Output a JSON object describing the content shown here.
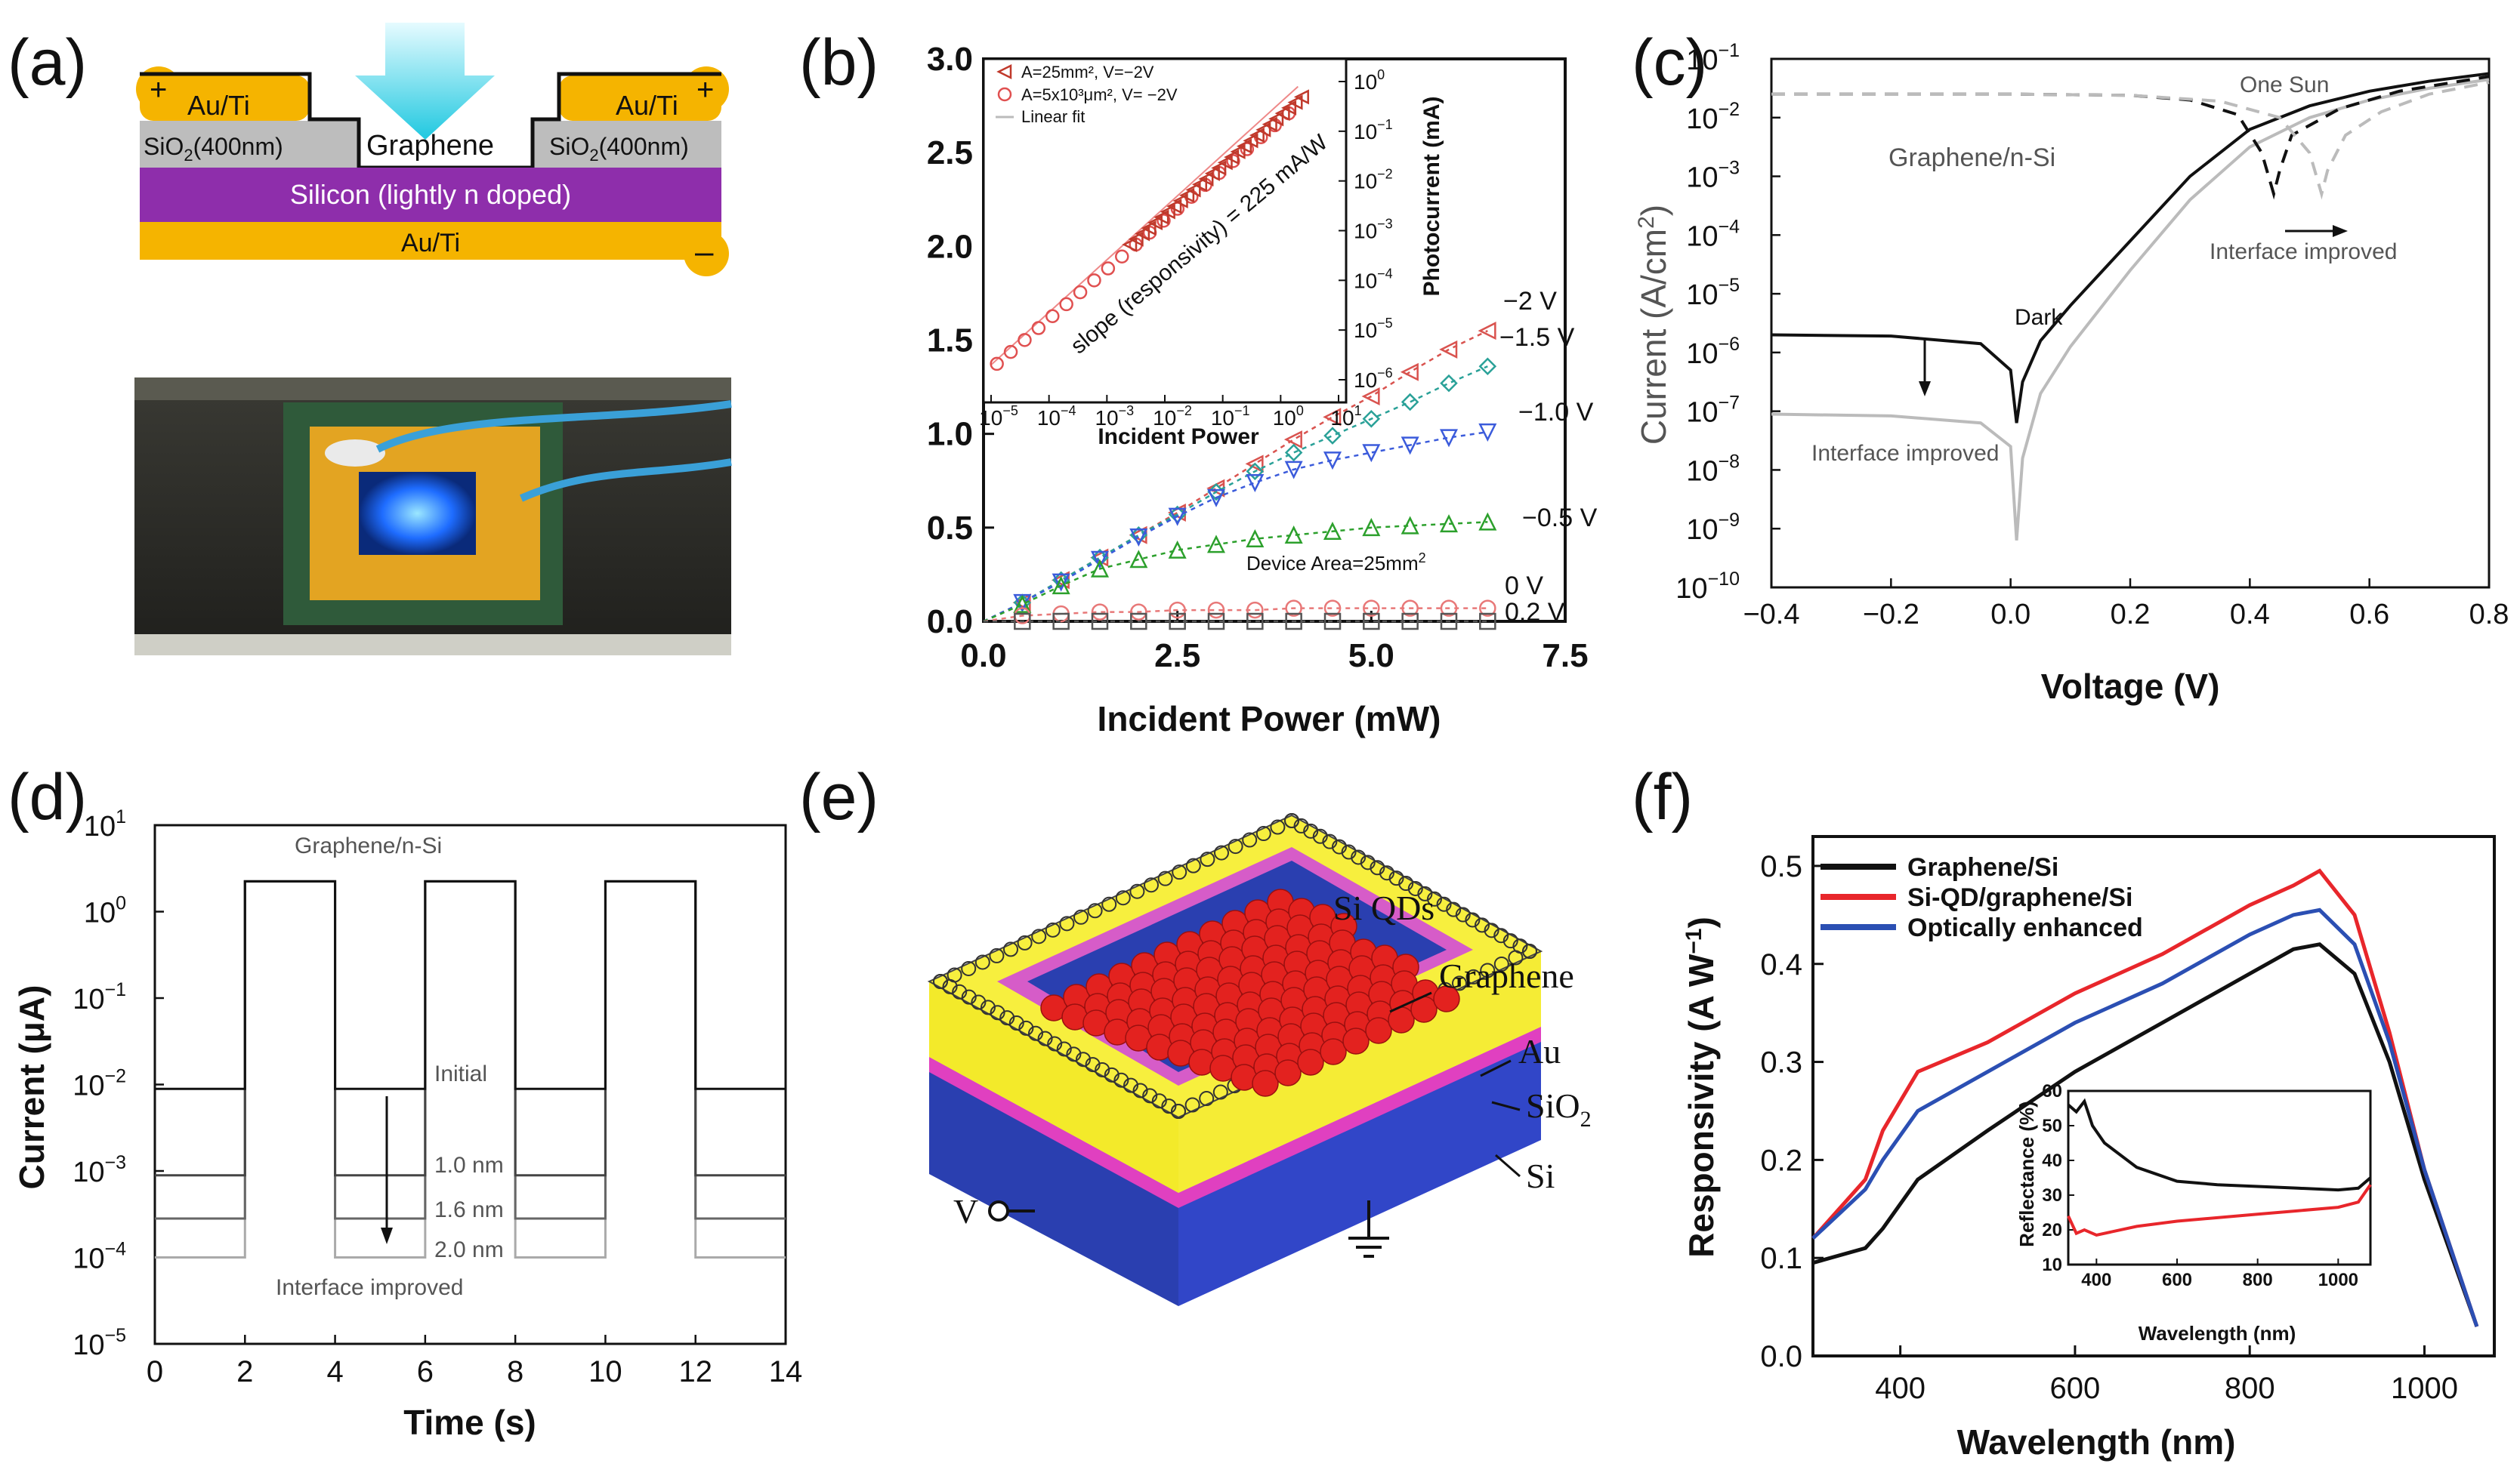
{
  "colors": {
    "gold": "#f5b400",
    "oxide": "#bdbdbd",
    "silicon": "#8e2eab",
    "arrow": "#33d6e8",
    "red": "#e8262b",
    "blue": "#2b4fb3",
    "black": "#111111",
    "gray": "#bbbbbb"
  },
  "labels": {
    "a": "(a)",
    "b": "(b)",
    "c": "(c)",
    "d": "(d)",
    "e": "(e)",
    "f": "(f)"
  },
  "panel_a": {
    "au_left": "Au/Ti",
    "au_right": "Au/Ti",
    "plus_left": "+",
    "plus_right": "+",
    "sio2_left": "SiO",
    "sio2_right": "SiO",
    "sio2_suffix": "(400nm)",
    "sub2": "2",
    "graphene": "Graphene",
    "silicon": "Silicon (lightly n doped)",
    "au_bottom": "Au/Ti",
    "minus": "–"
  },
  "panel_b": {
    "chart_data": {
      "type": "scatter",
      "xlabel": "Incident Power (mW)",
      "xlim": [
        0,
        7.5
      ],
      "ylim": [
        0,
        3.0
      ],
      "xticks": [
        "0.0",
        "2.5",
        "5.0",
        "7.5"
      ],
      "yticks": [
        "0.0",
        "0.5",
        "1.0",
        "1.5",
        "2.0",
        "2.5",
        "3.0"
      ],
      "series": [
        {
          "name": "−2 V",
          "color": "#d9534f",
          "marker": "triangle-left",
          "x": [
            0.5,
            1.0,
            1.5,
            2.0,
            2.5,
            3.0,
            3.5,
            4.0,
            4.5,
            5.0,
            5.5,
            6.0,
            6.5
          ],
          "y": [
            0.1,
            0.22,
            0.34,
            0.46,
            0.58,
            0.71,
            0.84,
            0.97,
            1.09,
            1.2,
            1.33,
            1.45,
            1.55
          ]
        },
        {
          "name": "−1.5 V",
          "color": "#2aa198",
          "marker": "diamond",
          "x": [
            0.5,
            1.0,
            1.5,
            2.0,
            2.5,
            3.0,
            3.5,
            4.0,
            4.5,
            5.0,
            5.5,
            6.0,
            6.5
          ],
          "y": [
            0.1,
            0.22,
            0.34,
            0.46,
            0.57,
            0.69,
            0.8,
            0.9,
            0.99,
            1.08,
            1.17,
            1.27,
            1.36
          ]
        },
        {
          "name": "−1.0 V",
          "color": "#3b5bdb",
          "marker": "triangle-down",
          "x": [
            0.5,
            1.0,
            1.5,
            2.0,
            2.5,
            3.0,
            3.5,
            4.0,
            4.5,
            5.0,
            5.5,
            6.0,
            6.5
          ],
          "y": [
            0.1,
            0.21,
            0.33,
            0.45,
            0.56,
            0.66,
            0.74,
            0.81,
            0.86,
            0.9,
            0.94,
            0.98,
            1.01
          ]
        },
        {
          "name": "−0.5 V",
          "color": "#2ca02c",
          "marker": "triangle-up",
          "x": [
            0.5,
            1.0,
            1.5,
            2.0,
            2.5,
            3.0,
            3.5,
            4.0,
            4.5,
            5.0,
            5.5,
            6.0,
            6.5
          ],
          "y": [
            0.09,
            0.19,
            0.28,
            0.33,
            0.38,
            0.41,
            0.44,
            0.46,
            0.48,
            0.5,
            0.51,
            0.52,
            0.53
          ]
        },
        {
          "name": "0 V",
          "color": "#e87878",
          "marker": "circle",
          "x": [
            0.5,
            1.0,
            1.5,
            2.0,
            2.5,
            3.0,
            3.5,
            4.0,
            4.5,
            5.0,
            5.5,
            6.0,
            6.5
          ],
          "y": [
            0.03,
            0.04,
            0.05,
            0.05,
            0.06,
            0.06,
            0.06,
            0.07,
            0.07,
            0.07,
            0.07,
            0.07,
            0.07
          ]
        },
        {
          "name": "0.2 V",
          "color": "#555555",
          "marker": "square",
          "x": [
            0.5,
            1.0,
            1.5,
            2.0,
            2.5,
            3.0,
            3.5,
            4.0,
            4.5,
            5.0,
            5.5,
            6.0,
            6.5
          ],
          "y": [
            0.0,
            0.0,
            0.0,
            0.0,
            0.0,
            0.0,
            0.0,
            0.0,
            0.0,
            0.0,
            0.0,
            0.0,
            0.0
          ]
        }
      ],
      "annotation": "Device Area=25mm",
      "annotation_sup": "2"
    },
    "inset": {
      "xlabel": "Incident Power",
      "ylabel": "Photocurrent (mA)",
      "xticks": [
        "10",
        "10",
        "10",
        "10",
        "10",
        "10",
        "10"
      ],
      "xexp": [
        "−5",
        "−4",
        "−3",
        "−2",
        "−1",
        "0",
        "1"
      ],
      "ybase": "10",
      "yexp": [
        "0",
        "−1",
        "−2",
        "−3",
        "−4",
        "−5",
        "−6"
      ],
      "legend": [
        "A=25mm², V=−2V",
        "A=5x10³μm², V= −2V",
        "Linear fit"
      ],
      "slope_text": "slope (responsivity) = 225 mA/W"
    }
  },
  "panel_c": {
    "chart_data": {
      "type": "line",
      "xlabel": "Voltage (V)",
      "ylabel": "Current (A/cm",
      "ylabel_sup": "2",
      "ylabel_end": ")",
      "xlim": [
        -0.4,
        0.8
      ],
      "ylog": [
        -10,
        -1
      ],
      "xticks": [
        "−0.4",
        "−0.2",
        "0.0",
        "0.2",
        "0.4",
        "0.6",
        "0.8"
      ],
      "ybase": "10",
      "yexp": [
        "−1",
        "−2",
        "−3",
        "−4",
        "−5",
        "−6",
        "−7",
        "−8",
        "−9",
        "−10"
      ],
      "series": [
        {
          "name": "Dark (original)",
          "color": "#111111",
          "x": [
            -0.4,
            -0.2,
            -0.05,
            0.0,
            0.01,
            0.02,
            0.05,
            0.1,
            0.2,
            0.3,
            0.4,
            0.5,
            0.6,
            0.7,
            0.8
          ],
          "log10_y": [
            -5.7,
            -5.72,
            -5.85,
            -6.3,
            -7.2,
            -6.5,
            -5.8,
            -5.2,
            -4.1,
            -3.0,
            -2.2,
            -1.8,
            -1.55,
            -1.38,
            -1.25
          ]
        },
        {
          "name": "Dark (interface improved)",
          "color": "#bbbbbb",
          "x": [
            -0.4,
            -0.2,
            -0.05,
            0.0,
            0.01,
            0.02,
            0.05,
            0.1,
            0.2,
            0.3,
            0.4,
            0.5,
            0.6,
            0.7,
            0.8
          ],
          "log10_y": [
            -7.05,
            -7.08,
            -7.2,
            -7.6,
            -9.2,
            -7.8,
            -6.7,
            -5.9,
            -4.6,
            -3.4,
            -2.5,
            -2.0,
            -1.7,
            -1.5,
            -1.35
          ]
        },
        {
          "name": "One Sun (original)",
          "color": "#111111",
          "dashed": true,
          "x": [
            -0.4,
            0.0,
            0.2,
            0.3,
            0.38,
            0.42,
            0.44,
            0.45,
            0.47,
            0.55,
            0.65,
            0.8
          ],
          "log10_y": [
            -1.6,
            -1.6,
            -1.62,
            -1.7,
            -1.95,
            -2.6,
            -3.3,
            -2.9,
            -2.3,
            -1.85,
            -1.55,
            -1.3
          ]
        },
        {
          "name": "One Sun (interface improved)",
          "color": "#bbbbbb",
          "dashed": true,
          "x": [
            -0.4,
            0.0,
            0.2,
            0.35,
            0.45,
            0.5,
            0.52,
            0.53,
            0.56,
            0.62,
            0.7,
            0.8
          ],
          "log10_y": [
            -1.6,
            -1.6,
            -1.62,
            -1.72,
            -2.0,
            -2.6,
            -3.3,
            -2.9,
            -2.3,
            -1.9,
            -1.6,
            -1.4
          ]
        }
      ],
      "annotations": [
        "Graphene/n-Si",
        "One Sun",
        "Dark",
        "Interface improved",
        "Interface improved"
      ]
    }
  },
  "panel_d": {
    "chart_data": {
      "type": "line",
      "xlabel": "Time (s)",
      "ylabel": "Current (μA)",
      "xlim": [
        0,
        14
      ],
      "ylog": [
        -5,
        1
      ],
      "xticks": [
        "0",
        "2",
        "4",
        "6",
        "8",
        "10",
        "12",
        "14"
      ],
      "ybase": "10",
      "yexp": [
        "1",
        "0",
        "−1",
        "−2",
        "−3",
        "−4",
        "−5"
      ],
      "on_intervals": [
        [
          2,
          4
        ],
        [
          6,
          8
        ],
        [
          10,
          12
        ]
      ],
      "on_log10": 0.35,
      "series": [
        {
          "name": "Initial",
          "color": "#111111",
          "log10_off": -2.05
        },
        {
          "name": "1.0 nm",
          "color": "#444444",
          "log10_off": -3.05
        },
        {
          "name": "1.6 nm",
          "color": "#666666",
          "log10_off": -3.55
        },
        {
          "name": "2.0 nm",
          "color": "#aaaaaa",
          "log10_off": -4.0
        }
      ],
      "annotations": [
        "Graphene/n-Si",
        "Interface improved"
      ]
    }
  },
  "panel_e": {
    "si_qds": "Si QDs",
    "graphene": "Graphene",
    "au": "Au",
    "sio2": "SiO",
    "sio2_sub": "2",
    "si": "Si",
    "v": "V"
  },
  "panel_f": {
    "chart_data": {
      "type": "line",
      "xlabel": "Wavelength (nm)",
      "ylabel": "Responsivity (A W",
      "ylabel_sup": "−1",
      "ylabel_end": ")",
      "xlim": [
        300,
        1080
      ],
      "ylim": [
        0,
        0.53
      ],
      "xticks": [
        "400",
        "600",
        "800",
        "1000"
      ],
      "yticks": [
        "0.0",
        "0.1",
        "0.2",
        "0.3",
        "0.4",
        "0.5"
      ],
      "series": [
        {
          "name": "Graphene/Si",
          "color": "#111111",
          "x": [
            300,
            360,
            380,
            420,
            500,
            600,
            700,
            800,
            850,
            880,
            920,
            960,
            1000,
            1060
          ],
          "y": [
            0.095,
            0.11,
            0.13,
            0.18,
            0.23,
            0.29,
            0.34,
            0.39,
            0.415,
            0.42,
            0.39,
            0.3,
            0.18,
            0.03
          ]
        },
        {
          "name": "Si-QD/graphene/Si",
          "color": "#e8262b",
          "x": [
            300,
            360,
            380,
            420,
            500,
            600,
            700,
            800,
            850,
            880,
            920,
            960,
            1000,
            1060
          ],
          "y": [
            0.12,
            0.18,
            0.23,
            0.29,
            0.32,
            0.37,
            0.41,
            0.46,
            0.48,
            0.495,
            0.45,
            0.33,
            0.19,
            0.03
          ]
        },
        {
          "name": "Optically enhanced",
          "color": "#2b4fb3",
          "x": [
            300,
            360,
            380,
            420,
            500,
            600,
            700,
            800,
            850,
            880,
            920,
            960,
            1000,
            1060
          ],
          "y": [
            0.12,
            0.17,
            0.2,
            0.25,
            0.29,
            0.34,
            0.38,
            0.43,
            0.45,
            0.455,
            0.42,
            0.32,
            0.19,
            0.03
          ]
        }
      ],
      "inset": {
        "xlabel": "Wavelength (nm)",
        "ylabel": "Reflectance (%)",
        "xticks": [
          "400",
          "600",
          "800",
          "1000"
        ],
        "yticks": [
          "10",
          "20",
          "30",
          "40",
          "50",
          "60"
        ],
        "xlim": [
          330,
          1080
        ],
        "ylim": [
          10,
          60
        ],
        "series": [
          {
            "name": "Graphene/Si",
            "color": "#111111",
            "x": [
              330,
              350,
              370,
              390,
              420,
              500,
              600,
              700,
              800,
              900,
              1000,
              1050,
              1080
            ],
            "y": [
              56,
              54,
              57,
              50,
              45,
              38,
              34,
              33,
              32.5,
              32,
              31.5,
              32,
              35
            ]
          },
          {
            "name": "Si-QD/graphene/Si",
            "color": "#e8262b",
            "x": [
              330,
              350,
              370,
              400,
              500,
              600,
              700,
              800,
              900,
              1000,
              1050,
              1080
            ],
            "y": [
              24,
              19,
              20,
              18.5,
              21,
              22.5,
              23.5,
              24.5,
              25.5,
              26.5,
              28,
              33
            ]
          }
        ]
      }
    }
  }
}
